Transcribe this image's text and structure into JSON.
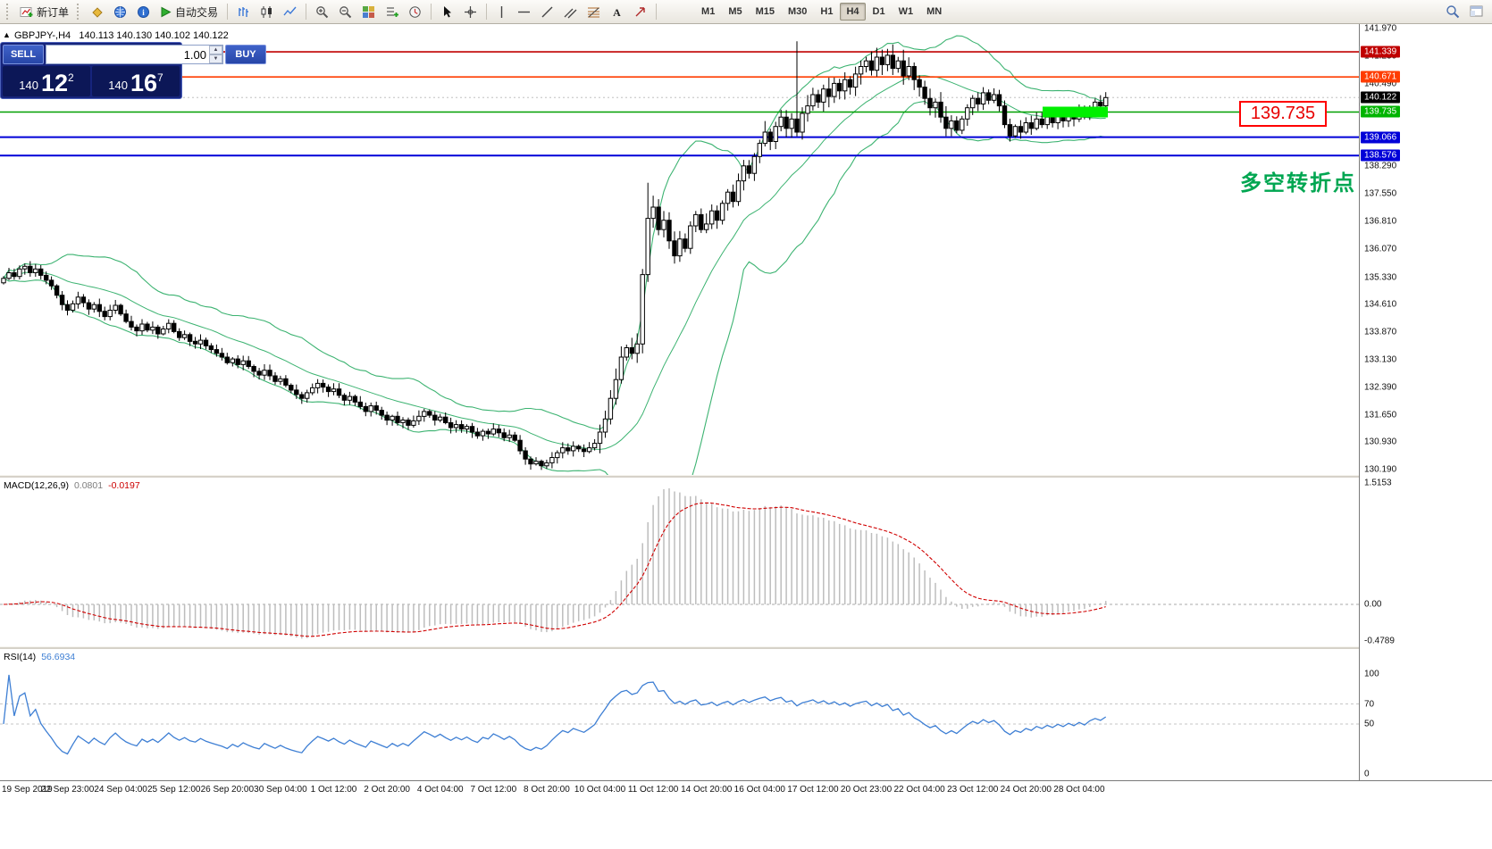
{
  "toolbar": {
    "new_order": "新订单",
    "autotrading": "自动交易",
    "timeframes": [
      "M1",
      "M5",
      "M15",
      "M30",
      "H1",
      "H4",
      "D1",
      "W1",
      "MN"
    ],
    "active_timeframe": "H4"
  },
  "symbol_header": {
    "symbol": "GBPJPY-,H4",
    "ohlc": "140.113 140.130 140.102 140.122"
  },
  "trade_panel": {
    "sell_label": "SELL",
    "buy_label": "BUY",
    "volume": "1.00",
    "sell_price": {
      "small": "140",
      "big": "12",
      "sup": "2"
    },
    "buy_price": {
      "small": "140",
      "big": "16",
      "sup": "7"
    }
  },
  "chart": {
    "annotation": "多空转折点",
    "annotation_color": "#00a651",
    "callout_text": "139.735",
    "axis_ticks": [
      "141.970",
      "141.230",
      "140.490",
      "139.750",
      "139.010",
      "138.290",
      "137.550",
      "136.810",
      "136.070",
      "135.330",
      "134.610",
      "133.870",
      "133.130",
      "132.390",
      "131.650",
      "130.930",
      "130.190"
    ],
    "price_labels": [
      {
        "text": "141.339",
        "price": 141.339,
        "bg": "#c00000"
      },
      {
        "text": "140.671",
        "price": 140.671,
        "bg": "#ff3c00"
      },
      {
        "text": "140.122",
        "price": 140.122,
        "bg": "#000000"
      },
      {
        "text": "139.735",
        "price": 139.735,
        "bg": "#00b400"
      },
      {
        "text": "139.066",
        "price": 139.066,
        "bg": "#0000d8"
      },
      {
        "text": "138.576",
        "price": 138.576,
        "bg": "#0000d8"
      }
    ],
    "hlines": [
      {
        "price": 141.339,
        "color": "#c00000",
        "width": 1.6
      },
      {
        "price": 140.671,
        "color": "#ff3c00",
        "width": 1.6
      },
      {
        "price": 139.735,
        "color": "#00a000",
        "width": 1.4
      },
      {
        "price": 139.066,
        "color": "#0000d8",
        "width": 2
      },
      {
        "price": 138.576,
        "color": "#0000d8",
        "width": 2
      }
    ],
    "highlight_bar": {
      "price": 139.735,
      "x_from": 1167,
      "x_to": 1240,
      "thickness": 12,
      "color": "#00ef00"
    },
    "bid_price": 140.122,
    "band_color": "#3CB371"
  },
  "chart_data": {
    "type": "candlestick",
    "symbol": "GBPJPY-",
    "timeframe": "H4",
    "ylim": [
      130.06,
      142.08
    ],
    "closes": [
      135.3,
      135.45,
      135.35,
      135.55,
      135.62,
      135.45,
      135.55,
      135.38,
      135.25,
      135.1,
      134.85,
      134.6,
      134.45,
      134.62,
      134.8,
      134.65,
      134.48,
      134.6,
      134.42,
      134.28,
      134.45,
      134.58,
      134.35,
      134.15,
      134.0,
      133.9,
      134.08,
      133.92,
      134.0,
      133.82,
      133.95,
      134.1,
      133.88,
      133.72,
      133.8,
      133.62,
      133.55,
      133.65,
      133.5,
      133.4,
      133.3,
      133.2,
      133.05,
      133.15,
      133.0,
      133.1,
      132.95,
      132.82,
      132.72,
      132.85,
      132.7,
      132.55,
      132.62,
      132.45,
      132.32,
      132.2,
      132.1,
      132.25,
      132.38,
      132.5,
      132.4,
      132.28,
      132.35,
      132.18,
      132.05,
      132.15,
      132.0,
      131.88,
      131.75,
      131.9,
      131.78,
      131.65,
      131.52,
      131.62,
      131.45,
      131.52,
      131.38,
      131.5,
      131.62,
      131.75,
      131.65,
      131.52,
      131.6,
      131.45,
      131.32,
      131.4,
      131.28,
      131.35,
      131.2,
      131.1,
      131.22,
      131.15,
      131.28,
      131.18,
      131.05,
      131.12,
      130.98,
      130.7,
      130.48,
      130.35,
      130.42,
      130.3,
      130.38,
      130.52,
      130.65,
      130.78,
      130.7,
      130.82,
      130.75,
      130.68,
      130.78,
      130.9,
      131.2,
      131.55,
      132.1,
      132.6,
      133.2,
      133.45,
      133.3,
      133.55,
      135.4,
      136.9,
      137.2,
      136.6,
      136.85,
      136.3,
      135.9,
      136.35,
      136.1,
      136.7,
      137.0,
      136.6,
      136.75,
      137.1,
      136.85,
      137.3,
      137.6,
      137.35,
      137.9,
      138.3,
      138.1,
      138.55,
      138.9,
      139.2,
      138.95,
      139.35,
      139.6,
      139.3,
      139.55,
      139.2,
      139.7,
      139.9,
      140.2,
      140.0,
      140.35,
      140.15,
      140.5,
      140.3,
      140.6,
      140.4,
      140.75,
      140.95,
      141.1,
      140.85,
      141.2,
      141.0,
      141.25,
      140.9,
      141.1,
      140.7,
      140.95,
      140.6,
      140.4,
      140.1,
      139.85,
      140.0,
      139.6,
      139.3,
      139.5,
      139.25,
      139.55,
      139.85,
      140.1,
      139.95,
      140.25,
      140.05,
      140.2,
      139.9,
      139.4,
      139.1,
      139.35,
      139.2,
      139.45,
      139.3,
      139.55,
      139.4,
      139.6,
      139.45,
      139.65,
      139.5,
      139.7,
      139.55,
      139.75,
      139.6,
      139.85,
      140.0,
      139.9,
      140.12
    ],
    "wick_overrides": {
      "101": {
        "l": 130.19
      },
      "120": {
        "l": 133.3
      },
      "121": {
        "h": 137.85
      },
      "149": {
        "h": 141.62
      },
      "164": {
        "h": 141.45
      },
      "166": {
        "h": 141.42
      }
    },
    "indicators": {
      "bollinger_period": 20,
      "bollinger_dev": 2,
      "macd": [
        12,
        26,
        9
      ],
      "rsi_period": 14
    }
  },
  "macd_panel": {
    "name": "MACD(12,26,9)",
    "value_main": "0.0801",
    "value_signal": "-0.0197",
    "axis_labels": [
      "1.5153",
      "0.00",
      "-0.4789"
    ]
  },
  "rsi_panel": {
    "name": "RSI(14)",
    "value": "56.6934",
    "axis_labels": [
      "100",
      "70",
      "50",
      "0"
    ],
    "levels": [
      70,
      50
    ]
  },
  "time_axis": [
    "19 Sep 2019",
    "22 Sep 23:00",
    "24 Sep 04:00",
    "25 Sep 12:00",
    "26 Sep 20:00",
    "30 Sep 04:00",
    "1 Oct 12:00",
    "2 Oct 20:00",
    "4 Oct 04:00",
    "7 Oct 12:00",
    "8 Oct 20:00",
    "10 Oct 04:00",
    "11 Oct 12:00",
    "14 Oct 20:00",
    "16 Oct 04:00",
    "17 Oct 12:00",
    "20 Oct 23:00",
    "22 Oct 04:00",
    "23 Oct 12:00",
    "24 Oct 20:00",
    "28 Oct 04:00"
  ]
}
